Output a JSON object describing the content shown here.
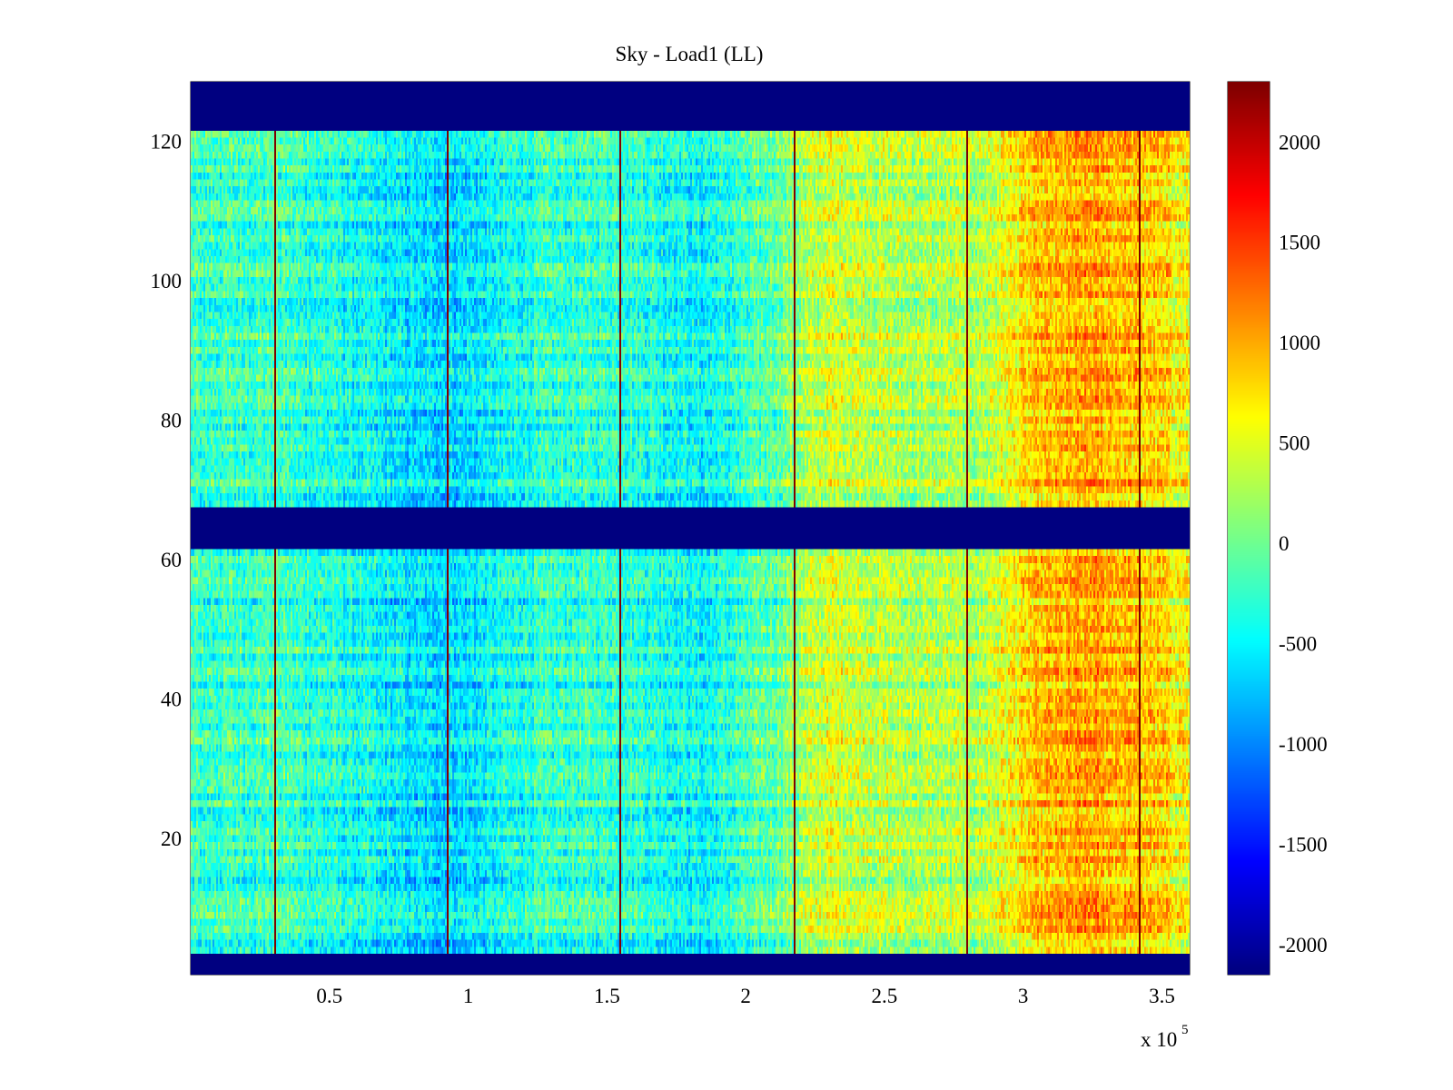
{
  "chart_data": {
    "type": "heatmap",
    "title": "Sky - Load1 (LL)",
    "xlabel": "",
    "ylabel": "",
    "x_multiplier_label": "x 10",
    "x_multiplier_exponent": "5",
    "xlim": [
      0,
      3.6
    ],
    "ylim": [
      0.5,
      128.5
    ],
    "x_ticks": [
      {
        "value": 0.5,
        "label": "0.5"
      },
      {
        "value": 1,
        "label": "1"
      },
      {
        "value": 1.5,
        "label": "1.5"
      },
      {
        "value": 2,
        "label": "2"
      },
      {
        "value": 2.5,
        "label": "2.5"
      },
      {
        "value": 3,
        "label": "3"
      },
      {
        "value": 3.5,
        "label": "3.5"
      }
    ],
    "y_ticks": [
      {
        "value": 20,
        "label": "20"
      },
      {
        "value": 40,
        "label": "40"
      },
      {
        "value": 60,
        "label": "60"
      },
      {
        "value": 80,
        "label": "80"
      },
      {
        "value": 100,
        "label": "100"
      },
      {
        "value": 120,
        "label": "120"
      }
    ],
    "colorbar": {
      "colormap": "jet",
      "range": [
        -2150,
        2300
      ],
      "ticks": [
        {
          "value": 2000,
          "label": "2000"
        },
        {
          "value": 1500,
          "label": "1500"
        },
        {
          "value": 1000,
          "label": "1000"
        },
        {
          "value": 500,
          "label": "500"
        },
        {
          "value": 0,
          "label": "0"
        },
        {
          "value": -500,
          "label": "-500"
        },
        {
          "value": -1000,
          "label": "-1000"
        },
        {
          "value": -1500,
          "label": "-1500"
        },
        {
          "value": -2000,
          "label": "-2000"
        }
      ]
    },
    "masked_row_bands": [
      [
        0.5,
        3.5
      ],
      [
        61.5,
        67.5
      ],
      [
        121.5,
        128.5
      ]
    ],
    "masked_value": -2150,
    "vertical_spikes_x": [
      0.3,
      0.925,
      1.55,
      2.175,
      2.8,
      3.425
    ],
    "spike_value": 2300,
    "column_profile": [
      {
        "x": 0.0,
        "value": -250
      },
      {
        "x": 0.3,
        "value": -200
      },
      {
        "x": 0.55,
        "value": -400
      },
      {
        "x": 0.85,
        "value": -650
      },
      {
        "x": 1.0,
        "value": -600
      },
      {
        "x": 1.25,
        "value": -300
      },
      {
        "x": 1.55,
        "value": -250
      },
      {
        "x": 1.85,
        "value": -500
      },
      {
        "x": 2.1,
        "value": -50
      },
      {
        "x": 2.3,
        "value": 450
      },
      {
        "x": 2.6,
        "value": 250
      },
      {
        "x": 2.85,
        "value": 300
      },
      {
        "x": 3.05,
        "value": 850
      },
      {
        "x": 3.25,
        "value": 1000
      },
      {
        "x": 3.45,
        "value": 850
      },
      {
        "x": 3.6,
        "value": 600
      }
    ]
  }
}
